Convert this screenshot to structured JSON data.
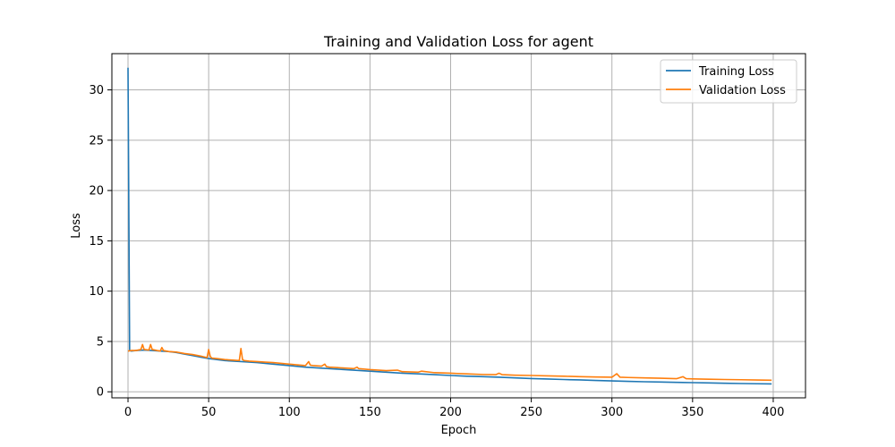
{
  "chart_data": {
    "type": "line",
    "title": "Training and Validation Loss for agent",
    "xlabel": "Epoch",
    "ylabel": "Loss",
    "xlim": [
      -10,
      420
    ],
    "ylim": [
      -0.6,
      33.6
    ],
    "xticks": [
      0,
      50,
      100,
      150,
      200,
      250,
      300,
      350,
      400
    ],
    "yticks": [
      0,
      5,
      10,
      15,
      20,
      25,
      30
    ],
    "grid": true,
    "legend_position": "top-right",
    "series": [
      {
        "name": "Training Loss",
        "color": "#1f77b4",
        "x": [
          0,
          1,
          2,
          5,
          10,
          15,
          20,
          25,
          30,
          35,
          40,
          45,
          50,
          55,
          60,
          70,
          80,
          90,
          100,
          110,
          120,
          130,
          140,
          150,
          160,
          170,
          180,
          190,
          200,
          210,
          220,
          230,
          240,
          250,
          260,
          270,
          280,
          290,
          300,
          310,
          320,
          330,
          340,
          350,
          360,
          370,
          380,
          390,
          399
        ],
        "y": [
          32.2,
          4.1,
          4.05,
          4.1,
          4.15,
          4.1,
          4.05,
          4.0,
          3.9,
          3.75,
          3.6,
          3.45,
          3.3,
          3.2,
          3.1,
          3.0,
          2.9,
          2.75,
          2.6,
          2.45,
          2.35,
          2.25,
          2.15,
          2.05,
          1.95,
          1.85,
          1.78,
          1.7,
          1.62,
          1.55,
          1.5,
          1.45,
          1.38,
          1.32,
          1.27,
          1.22,
          1.18,
          1.13,
          1.08,
          1.04,
          1.0,
          0.97,
          0.94,
          0.91,
          0.88,
          0.85,
          0.82,
          0.8,
          0.78
        ]
      },
      {
        "name": "Validation Loss",
        "color": "#ff7f0e",
        "x": [
          0,
          2,
          5,
          8,
          9,
          10,
          13,
          14,
          15,
          18,
          20,
          21,
          22,
          25,
          30,
          35,
          40,
          45,
          49,
          50,
          51,
          52,
          55,
          60,
          65,
          69,
          70,
          71,
          72,
          75,
          80,
          85,
          90,
          100,
          110,
          112,
          113,
          115,
          120,
          122,
          123,
          125,
          130,
          140,
          142,
          143,
          150,
          160,
          167,
          170,
          180,
          182,
          190,
          200,
          210,
          220,
          228,
          230,
          232,
          240,
          250,
          260,
          270,
          280,
          290,
          300,
          303,
          305,
          310,
          320,
          330,
          340,
          344,
          346,
          350,
          360,
          370,
          380,
          390,
          399
        ],
        "y": [
          4.05,
          4.1,
          4.1,
          4.2,
          4.7,
          4.2,
          4.15,
          4.7,
          4.2,
          4.1,
          4.05,
          4.4,
          4.1,
          4.0,
          3.95,
          3.8,
          3.7,
          3.55,
          3.4,
          4.2,
          3.5,
          3.35,
          3.3,
          3.2,
          3.15,
          3.1,
          4.3,
          3.2,
          3.1,
          3.05,
          3.0,
          2.95,
          2.9,
          2.75,
          2.6,
          3.0,
          2.65,
          2.6,
          2.55,
          2.75,
          2.5,
          2.45,
          2.4,
          2.3,
          2.45,
          2.3,
          2.2,
          2.1,
          2.15,
          2.0,
          1.95,
          2.05,
          1.9,
          1.85,
          1.78,
          1.72,
          1.7,
          1.85,
          1.7,
          1.65,
          1.62,
          1.58,
          1.55,
          1.5,
          1.47,
          1.45,
          1.8,
          1.45,
          1.42,
          1.38,
          1.35,
          1.3,
          1.5,
          1.3,
          1.28,
          1.25,
          1.22,
          1.2,
          1.17,
          1.15
        ]
      }
    ]
  }
}
